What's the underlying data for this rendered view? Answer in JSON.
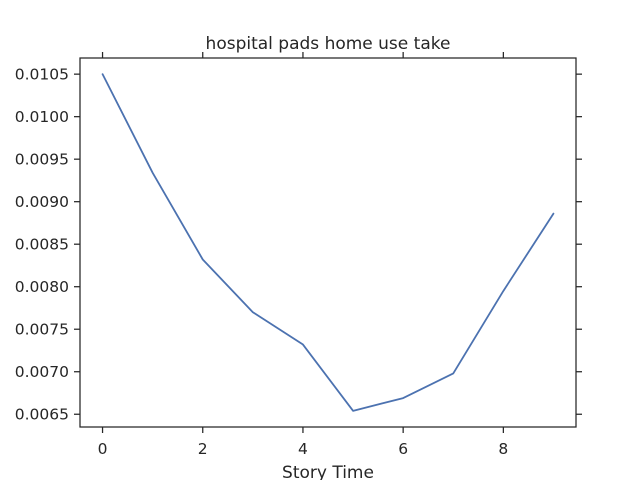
{
  "chart_data": {
    "type": "line",
    "title": "hospital pads home use take",
    "xlabel": "Story Time",
    "ylabel": "",
    "xlim": [
      -0.45,
      9.45
    ],
    "ylim": [
      0.00635,
      0.01069
    ],
    "xticks": [
      0,
      2,
      4,
      6,
      8
    ],
    "xtick_labels": [
      "0",
      "2",
      "4",
      "6",
      "8"
    ],
    "yticks": [
      0.0065,
      0.007,
      0.0075,
      0.008,
      0.0085,
      0.009,
      0.0095,
      0.01,
      0.0105
    ],
    "ytick_labels": [
      "0.0065",
      "0.0070",
      "0.0075",
      "0.0080",
      "0.0085",
      "0.0090",
      "0.0095",
      "0.0100",
      "0.0105"
    ],
    "grid": false,
    "colors": {
      "line": "#4c72b0",
      "axes": "#262626"
    },
    "series": [
      {
        "x": [
          0,
          1,
          2,
          3,
          4,
          5,
          6,
          7,
          8,
          9
        ],
        "values": [
          0.0105,
          0.00934,
          0.00832,
          0.0077,
          0.00732,
          0.00654,
          0.00669,
          0.00698,
          0.00795,
          0.00886
        ]
      }
    ]
  }
}
